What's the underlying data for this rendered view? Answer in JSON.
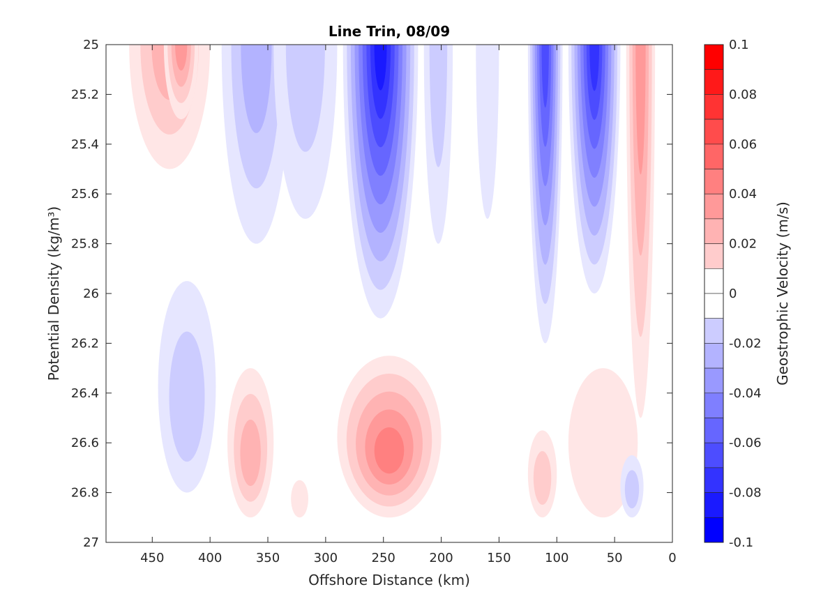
{
  "chart_data": {
    "type": "contour",
    "title": "Line Trin, 08/09",
    "xlabel": "Offshore Distance (km)",
    "ylabel": "Potential Density (kg/m³)",
    "x_reversed": true,
    "y_reversed": true,
    "xlim": [
      0,
      490
    ],
    "ylim": [
      25,
      27
    ],
    "x_ticks": [
      450,
      400,
      350,
      300,
      250,
      200,
      150,
      100,
      50,
      0
    ],
    "y_ticks": [
      25,
      25.2,
      25.4,
      25.6,
      25.8,
      26,
      26.2,
      26.4,
      26.6,
      26.8,
      27
    ],
    "y_tick_labels": [
      "25",
      "25.2",
      "25.4",
      "25.6",
      "25.8",
      "26",
      "26.2",
      "26.4",
      "26.6",
      "26.8",
      "27"
    ],
    "colorbar": {
      "label": "Geostrophic Velocity (m/s)",
      "min": -0.1,
      "max": 0.1,
      "step": 0.01,
      "ticks": [
        0.1,
        0.08,
        0.06,
        0.04,
        0.02,
        0,
        -0.02,
        -0.04,
        -0.06,
        -0.08,
        -0.1
      ],
      "tick_labels": [
        "0.1",
        "0.08",
        "0.06",
        "0.04",
        "0.02",
        "0",
        "-0.02",
        "-0.04",
        "-0.06",
        "-0.08",
        "-0.1"
      ],
      "colormap": "blue-white-red"
    },
    "features": [
      {
        "x": [
          330,
          390
        ],
        "y": [
          25.0,
          25.8
        ],
        "peak": -0.03
      },
      {
        "x": [
          290,
          345
        ],
        "y": [
          25.0,
          25.7
        ],
        "peak": -0.02
      },
      {
        "x": [
          220,
          285
        ],
        "y": [
          25.0,
          26.1
        ],
        "peak": -0.09
      },
      {
        "x": [
          190,
          215
        ],
        "y": [
          25.0,
          25.8
        ],
        "peak": -0.02
      },
      {
        "x": [
          150,
          170
        ],
        "y": [
          25.0,
          25.7
        ],
        "peak": -0.01
      },
      {
        "x": [
          95,
          125
        ],
        "y": [
          25.0,
          26.2
        ],
        "peak": -0.07
      },
      {
        "x": [
          45,
          90
        ],
        "y": [
          25.0,
          26.0
        ],
        "peak": -0.08
      },
      {
        "x": [
          400,
          470
        ],
        "y": [
          25.0,
          25.5
        ],
        "peak": 0.03
      },
      {
        "x": [
          410,
          440
        ],
        "y": [
          25.0,
          25.3
        ],
        "peak": 0.04
      },
      {
        "x": [
          15,
          40
        ],
        "y": [
          25.0,
          26.5
        ],
        "peak": 0.04
      },
      {
        "x": [
          395,
          445
        ],
        "y": [
          25.95,
          26.8
        ],
        "peak": -0.02
      },
      {
        "x": [
          345,
          385
        ],
        "y": [
          26.3,
          26.9
        ],
        "peak": 0.03
      },
      {
        "x": [
          315,
          330
        ],
        "y": [
          26.75,
          26.9
        ],
        "peak": 0.01
      },
      {
        "x": [
          200,
          290
        ],
        "y": [
          26.25,
          26.9
        ],
        "peak": 0.05
      },
      {
        "x": [
          100,
          125
        ],
        "y": [
          26.55,
          26.9
        ],
        "peak": 0.02
      },
      {
        "x": [
          30,
          90
        ],
        "y": [
          26.3,
          26.9
        ],
        "peak": 0.01
      },
      {
        "x": [
          25,
          45
        ],
        "y": [
          26.65,
          26.9
        ],
        "peak": -0.02
      }
    ]
  }
}
